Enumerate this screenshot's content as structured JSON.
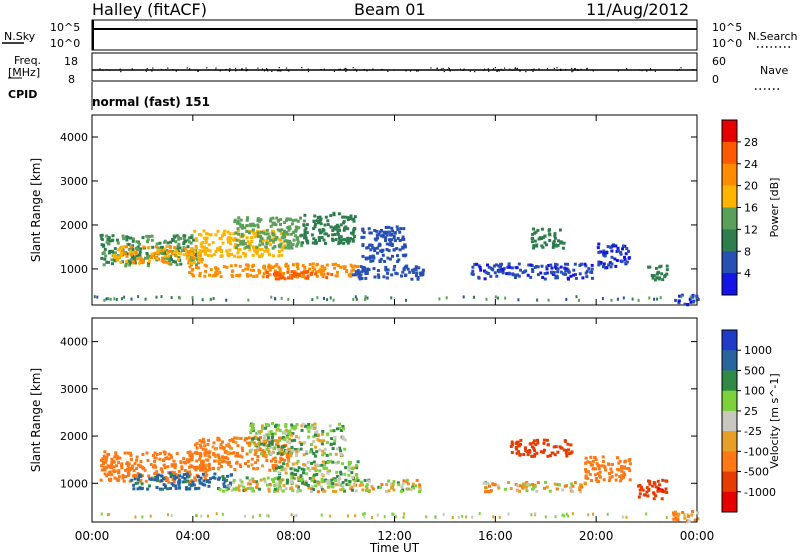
{
  "header": {
    "station": "Halley (fitACF)",
    "beam": "Beam 01",
    "date": "11/Aug/2012"
  },
  "noise_panel": {
    "label": "N.Sky",
    "left_ticks": [
      "10^5",
      "10^0"
    ],
    "right_ticks": [
      "10^5",
      "10^0"
    ],
    "right_label": "N.Search",
    "right_label_style": "dotted"
  },
  "freq_panel": {
    "label_line1": "Freq.",
    "label_line2": "[MHz]",
    "left_ticks": [
      "18",
      "8"
    ],
    "right_ticks": [
      "60",
      "0"
    ],
    "right_label": "Nave",
    "right_label_style": "dotted"
  },
  "cpid_panel": {
    "label": "CPID",
    "mode": "normal (fast) 151"
  },
  "x_axis": {
    "label": "Time UT",
    "ticks": [
      "00:00",
      "04:00",
      "08:00",
      "12:00",
      "16:00",
      "20:00",
      "00:00"
    ]
  },
  "colors": {
    "power": [
      "#1414e6",
      "#2850b4",
      "#2e7d4f",
      "#5aa05a",
      "#ffb400",
      "#ff8c00",
      "#ff5a00",
      "#e60000"
    ],
    "velocity": [
      "#1e3cc8",
      "#2864a0",
      "#2e8a46",
      "#7dd23c",
      "#c8c8c0",
      "#e6a028",
      "#ff7814",
      "#e63c00",
      "#e60000"
    ]
  },
  "chart_data": [
    {
      "type": "heatmap",
      "title": "",
      "xlabel": "",
      "ylabel": "Slant Range [km]",
      "xlim_hours": [
        0,
        24
      ],
      "ylim": [
        180,
        4500
      ],
      "y_ticks": [
        1000,
        2000,
        3000,
        4000
      ],
      "colorbar": {
        "label": "Power [dB]",
        "ticks": [
          "28",
          "24",
          "20",
          "16",
          "12",
          "8",
          "4"
        ],
        "range": [
          0,
          30
        ]
      },
      "regions": [
        {
          "t0": 0.3,
          "t1": 4.2,
          "r0": 1100,
          "r1": 1800,
          "v": 12
        },
        {
          "t0": 0.8,
          "t1": 4.5,
          "r0": 1150,
          "r1": 1550,
          "v": 20
        },
        {
          "t0": 4.0,
          "t1": 7.6,
          "r0": 1300,
          "r1": 1900,
          "v": 18
        },
        {
          "t0": 5.6,
          "t1": 8.4,
          "r0": 1500,
          "r1": 2200,
          "v": 14
        },
        {
          "t0": 8.2,
          "t1": 10.4,
          "r0": 1600,
          "r1": 2300,
          "v": 10
        },
        {
          "t0": 3.8,
          "t1": 10.5,
          "r0": 850,
          "r1": 1150,
          "v": 22
        },
        {
          "t0": 6.8,
          "t1": 9.6,
          "r0": 800,
          "r1": 980,
          "v": 26
        },
        {
          "t0": 10.3,
          "t1": 13.2,
          "r0": 800,
          "r1": 1100,
          "v": 6
        },
        {
          "t0": 10.6,
          "t1": 12.4,
          "r0": 1200,
          "r1": 2000,
          "v": 6
        },
        {
          "t0": 15.0,
          "t1": 19.8,
          "r0": 800,
          "r1": 1150,
          "v": 5
        },
        {
          "t0": 17.4,
          "t1": 18.7,
          "r0": 1500,
          "r1": 1950,
          "v": 10
        },
        {
          "t0": 20.0,
          "t1": 21.3,
          "r0": 1050,
          "r1": 1600,
          "v": 4
        },
        {
          "t0": 22.0,
          "t1": 22.8,
          "r0": 750,
          "r1": 1100,
          "v": 10
        },
        {
          "t0": 23.0,
          "t1": 24.0,
          "r0": 200,
          "r1": 450,
          "v": 4
        }
      ]
    },
    {
      "type": "heatmap",
      "title": "",
      "xlabel": "Time UT",
      "ylabel": "Slant Range [km]",
      "xlim_hours": [
        0,
        24
      ],
      "ylim": [
        180,
        4500
      ],
      "y_ticks": [
        1000,
        2000,
        3000,
        4000
      ],
      "colorbar": {
        "label": "Velocity [m s^-1]",
        "ticks": [
          "1000",
          "500",
          "100",
          "25",
          "-25",
          "-100",
          "-500",
          "-1000"
        ],
        "range": [
          -1200,
          1200
        ]
      },
      "regions": [
        {
          "t0": 0.3,
          "t1": 4.5,
          "r0": 1050,
          "r1": 1700,
          "v": -300
        },
        {
          "t0": 1.5,
          "t1": 5.5,
          "r0": 900,
          "r1": 1250,
          "v": 600
        },
        {
          "t0": 4.0,
          "t1": 7.8,
          "r0": 1300,
          "r1": 2000,
          "v": -200
        },
        {
          "t0": 6.2,
          "t1": 10.0,
          "r0": 1600,
          "r1": 2300,
          "v": 60
        },
        {
          "t0": 5.0,
          "t1": 10.5,
          "r0": 850,
          "r1": 1150,
          "v": 0
        },
        {
          "t0": 7.2,
          "t1": 10.5,
          "r0": 1000,
          "r1": 1500,
          "v": 70
        },
        {
          "t0": 10.5,
          "t1": 13.0,
          "r0": 850,
          "r1": 1100,
          "v": 0
        },
        {
          "t0": 15.5,
          "t1": 19.6,
          "r0": 850,
          "r1": 1050,
          "v": -60
        },
        {
          "t0": 16.5,
          "t1": 19.0,
          "r0": 1600,
          "r1": 1950,
          "v": -700
        },
        {
          "t0": 19.5,
          "t1": 21.3,
          "r0": 1050,
          "r1": 1600,
          "v": -350
        },
        {
          "t0": 21.6,
          "t1": 22.8,
          "r0": 700,
          "r1": 1100,
          "v": -900
        },
        {
          "t0": 23.0,
          "t1": 24.0,
          "r0": 200,
          "r1": 450,
          "v": -150
        }
      ]
    }
  ]
}
